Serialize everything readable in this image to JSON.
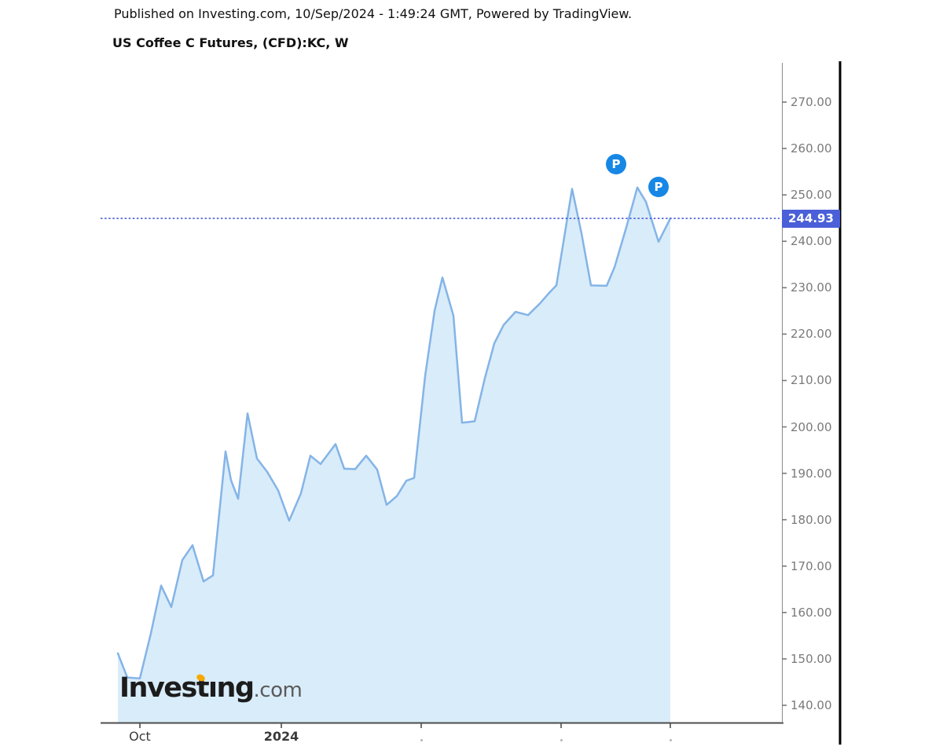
{
  "header": {
    "published_line": "Published on Investing.com, 10/Sep/2024 - 1:49:24 GMT, Powered by TradingView.",
    "title": "US Coffee C Futures, (CFD):KC, W"
  },
  "watermark": {
    "brand": "Investing",
    "suffix": ".com"
  },
  "price_scale": {
    "last_price_label": "244.93",
    "tick_labels": [
      "270.00",
      "260.00",
      "250.00",
      "240.00",
      "230.00",
      "220.00",
      "210.00",
      "200.00",
      "190.00",
      "180.00",
      "170.00",
      "160.00",
      "150.00",
      "140.00"
    ]
  },
  "time_scale": {
    "labels": [
      {
        "text": "Oct",
        "x": 178
      },
      {
        "text": "2024",
        "x": 358,
        "year": true
      }
    ],
    "minor_tick_x": [
      536,
      714,
      853
    ]
  },
  "chart_data": {
    "type": "area",
    "title": "US Coffee C Futures, (CFD):KC, W",
    "symbol": "(CFD):KC",
    "interval": "W",
    "source": "Investing.com / TradingView",
    "last_price": 244.93,
    "y_axis": {
      "min": 140,
      "max": 270,
      "step": 10,
      "side": "right",
      "tick_format": "0.00"
    },
    "x_axis": {
      "visible_tick_labels": [
        "Oct",
        "2024"
      ]
    },
    "legend_position": "none",
    "grid": "off",
    "series": [
      {
        "name": "US Coffee C Futures Weekly Close",
        "points": [
          [
            150,
            151.2
          ],
          [
            162,
            146.0
          ],
          [
            178,
            145.8
          ],
          [
            192,
            155.5
          ],
          [
            205,
            165.8
          ],
          [
            218,
            161.2
          ],
          [
            232,
            171.3
          ],
          [
            245,
            174.5
          ],
          [
            259,
            166.7
          ],
          [
            271,
            168.0
          ],
          [
            287,
            194.7
          ],
          [
            294,
            188.5
          ],
          [
            303,
            184.5
          ],
          [
            315,
            202.9
          ],
          [
            327,
            193.2
          ],
          [
            340,
            190.3
          ],
          [
            354,
            186.3
          ],
          [
            368,
            179.8
          ],
          [
            383,
            185.7
          ],
          [
            395,
            193.8
          ],
          [
            408,
            192.0
          ],
          [
            427,
            196.3
          ],
          [
            438,
            191.0
          ],
          [
            452,
            190.9
          ],
          [
            466,
            193.8
          ],
          [
            480,
            190.8
          ],
          [
            492,
            183.2
          ],
          [
            505,
            185.1
          ],
          [
            517,
            188.4
          ],
          [
            527,
            189.0
          ],
          [
            541,
            211.0
          ],
          [
            553,
            225.0
          ],
          [
            563,
            232.2
          ],
          [
            577,
            224.0
          ],
          [
            588,
            200.9
          ],
          [
            604,
            201.2
          ],
          [
            617,
            210.5
          ],
          [
            629,
            218.0
          ],
          [
            641,
            222.0
          ],
          [
            656,
            224.8
          ],
          [
            672,
            224.1
          ],
          [
            687,
            226.6
          ],
          [
            700,
            229.1
          ],
          [
            708,
            230.5
          ],
          [
            728,
            251.3
          ],
          [
            740,
            241.7
          ],
          [
            752,
            230.5
          ],
          [
            772,
            230.4
          ],
          [
            782,
            234.4
          ],
          [
            797,
            243.0
          ],
          [
            811,
            251.6
          ],
          [
            822,
            248.5
          ],
          [
            838,
            239.9
          ],
          [
            853,
            244.93
          ]
        ]
      }
    ],
    "markers": [
      {
        "label": "P",
        "x": 784,
        "y": 209
      },
      {
        "label": "P",
        "x": 838,
        "y": 238
      }
    ]
  },
  "colors": {
    "line": "#84b4e7",
    "fill": "#d9ecf9",
    "price_line": "#4a5fd8",
    "price_label_bg": "#4a5fd8",
    "marker": "#1787e6",
    "axis_text": "#7a7a7a",
    "time_text": "#3a3a3a",
    "header_text": "#111111",
    "logo_dot": "#f7a800"
  }
}
